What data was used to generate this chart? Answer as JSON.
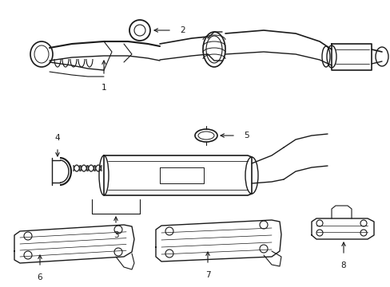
{
  "background_color": "#ffffff",
  "line_color": "#1a1a1a",
  "fig_width": 4.89,
  "fig_height": 3.6,
  "dpi": 100,
  "label_fontsize": 7.5
}
